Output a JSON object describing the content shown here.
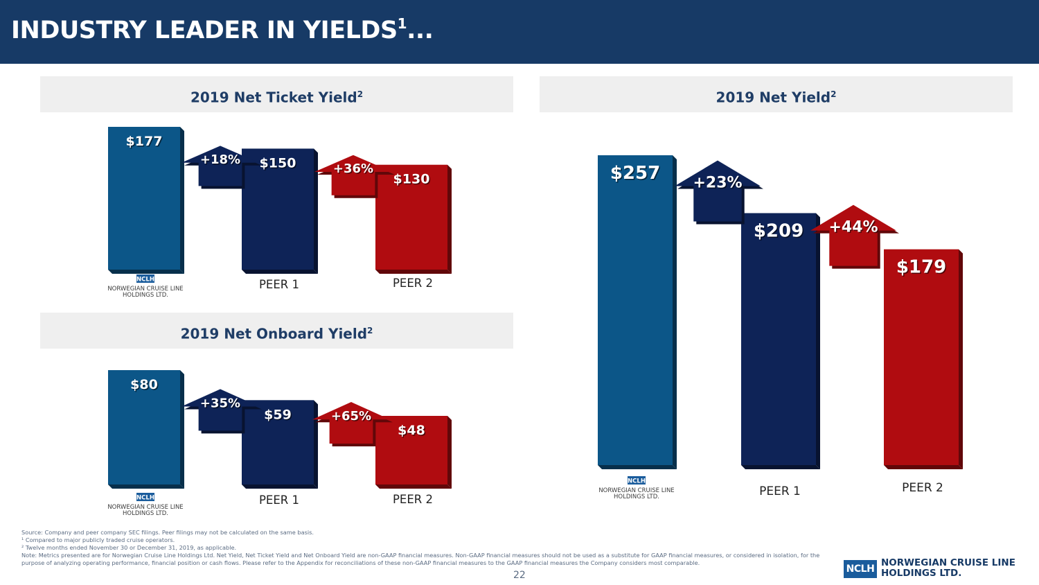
{
  "page": {
    "title_main": "INDUSTRY LEADER IN YIELDS",
    "title_sup": "1",
    "title_suffix": "...",
    "page_number": "22"
  },
  "footnotes": {
    "source": "Source: Company and peer company SEC filings. Peer filings may not be calculated on the same basis.",
    "note1": "¹ Compared to major publicly traded cruise operators.",
    "note2": "² Twelve months ended November 30 or December 31, 2019, as applicable.",
    "note3": "Note: Metrics presented are for Norwegian Cruise Line Holdings Ltd. Net Yield, Net Ticket Yield and Net Onboard Yield are non-GAAP financial measures. Non-GAAP financial measures should not be used as a substitute for GAAP financial measures, or considered in isolation, for the purpose of analyzing operating performance, financial position or cash flows. Please refer to the Appendix for reconciliations of these non-GAAP financial measures to the GAAP financial measures the Company considers most comparable."
  },
  "brand": {
    "box": "NCLH",
    "line1": "NORWEGIAN CRUISE LINE",
    "line2": "HOLDINGS LTD."
  },
  "colors": {
    "nclh": "#0c5688",
    "peer1": "#0e2357",
    "peer2": "#b00c10",
    "header": "#173a66",
    "panel_title_bg": "#efefef",
    "panel_title_text": "#1f3d66"
  },
  "chart_data": [
    {
      "type": "bar",
      "title": "2019 Net Ticket Yield",
      "title_sup": "2",
      "categories": [
        "NCLH",
        "PEER 1",
        "PEER 2"
      ],
      "values": [
        177,
        150,
        130
      ],
      "value_labels": [
        "$177",
        "$150",
        "$130"
      ],
      "differences": [
        "+18%",
        "+36%"
      ],
      "logo": {
        "box": "NCLH",
        "line1": "NORWEGIAN CRUISE LINE",
        "line2": "HOLDINGS LTD."
      }
    },
    {
      "type": "bar",
      "title": "2019 Net Onboard Yield",
      "title_sup": "2",
      "categories": [
        "NCLH",
        "PEER 1",
        "PEER 2"
      ],
      "values": [
        80,
        59,
        48
      ],
      "value_labels": [
        "$80",
        "$59",
        "$48"
      ],
      "differences": [
        "+35%",
        "+65%"
      ],
      "logo": {
        "box": "NCLH",
        "line1": "NORWEGIAN CRUISE LINE",
        "line2": "HOLDINGS LTD."
      }
    },
    {
      "type": "bar",
      "title": "2019 Net Yield",
      "title_sup": "2",
      "categories": [
        "NCLH",
        "PEER 1",
        "PEER 2"
      ],
      "values": [
        257,
        209,
        179
      ],
      "value_labels": [
        "$257",
        "$209",
        "$179"
      ],
      "differences": [
        "+23%",
        "+44%"
      ],
      "logo": {
        "box": "NCLH",
        "line1": "NORWEGIAN CRUISE LINE",
        "line2": "HOLDINGS LTD."
      }
    }
  ]
}
